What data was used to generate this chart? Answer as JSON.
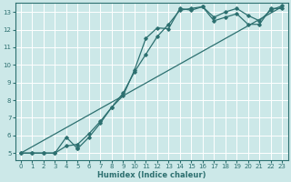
{
  "xlabel": "Humidex (Indice chaleur)",
  "bg_color": "#cce8e8",
  "grid_color": "#ffffff",
  "line_color": "#2d7070",
  "xlim": [
    -0.5,
    23.5
  ],
  "ylim": [
    4.6,
    13.5
  ],
  "xticks": [
    0,
    1,
    2,
    3,
    4,
    5,
    6,
    7,
    8,
    9,
    10,
    11,
    12,
    13,
    14,
    15,
    16,
    17,
    18,
    19,
    20,
    21,
    22,
    23
  ],
  "yticks": [
    5,
    6,
    7,
    8,
    9,
    10,
    11,
    12,
    13
  ],
  "line1_x": [
    0,
    1,
    2,
    3,
    4,
    5,
    5,
    6,
    7,
    8,
    9,
    10,
    11,
    12,
    13,
    14,
    15,
    16,
    17,
    18,
    19,
    20,
    21,
    22,
    23
  ],
  "line1_y": [
    5,
    5,
    5,
    5,
    5.9,
    5.25,
    5.25,
    5.9,
    6.7,
    7.6,
    8.25,
    9.7,
    11.5,
    12.1,
    12.05,
    13.2,
    13.1,
    13.3,
    12.5,
    12.7,
    12.9,
    12.3,
    12.3,
    13.2,
    13.2
  ],
  "line2_x": [
    0,
    1,
    2,
    3,
    4,
    5,
    6,
    7,
    8,
    9,
    10,
    11,
    12,
    13,
    14,
    15,
    16,
    17,
    18,
    19,
    20,
    21,
    22,
    23
  ],
  "line2_y": [
    5,
    5,
    5,
    5,
    5.4,
    5.5,
    6.1,
    6.8,
    7.6,
    8.4,
    9.6,
    10.6,
    11.6,
    12.3,
    13.1,
    13.2,
    13.3,
    12.7,
    13.0,
    13.2,
    12.8,
    12.5,
    13.1,
    13.35
  ],
  "line3_x": [
    0,
    23
  ],
  "line3_y": [
    5,
    13.3
  ]
}
